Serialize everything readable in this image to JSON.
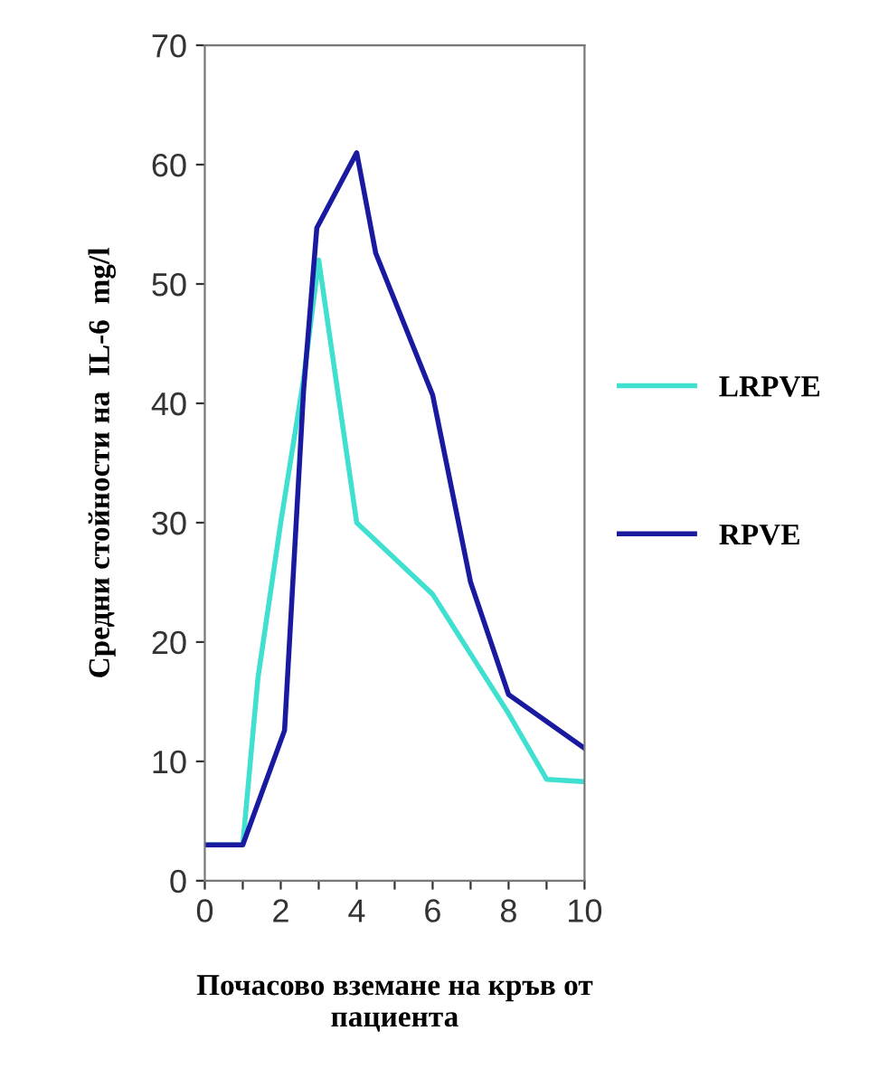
{
  "chart_data": {
    "type": "line",
    "xlabel": "Почасово вземане на кръв от\nпациента",
    "ylabel": "Средни стойности на  IL-6  mg/l",
    "xlim": [
      0,
      10
    ],
    "ylim": [
      0,
      70
    ],
    "xticks": [
      0,
      {
        "value": 1,
        "label": null
      },
      2,
      {
        "value": 3,
        "label": null
      },
      4,
      {
        "value": 5,
        "label": null
      },
      6,
      {
        "value": 7,
        "label": null
      },
      8,
      {
        "value": 9,
        "label": null
      },
      10
    ],
    "yticks": [
      0,
      10,
      20,
      30,
      40,
      50,
      60,
      70
    ],
    "grid": false,
    "legend": "right",
    "marker": "none",
    "line_style": "solid",
    "series": [
      {
        "name": "LRPVE",
        "color": "#40e0d0",
        "x": [
          0,
          1,
          1.4,
          2,
          2.6,
          3,
          4,
          5,
          6,
          7,
          8,
          9,
          10
        ],
        "values": [
          3,
          3,
          17,
          30,
          42,
          52,
          30,
          27,
          24,
          19,
          14,
          8.5,
          8.3
        ]
      },
      {
        "name": "RPVE",
        "color": "#1a1aa0",
        "x": [
          0,
          1,
          2.1,
          2.6,
          2.95,
          4,
          4.5,
          6,
          7,
          8,
          10
        ],
        "values": [
          3,
          3,
          12.6,
          41,
          54.7,
          61,
          52.6,
          40.7,
          25,
          15.6,
          11.1
        ]
      }
    ]
  }
}
